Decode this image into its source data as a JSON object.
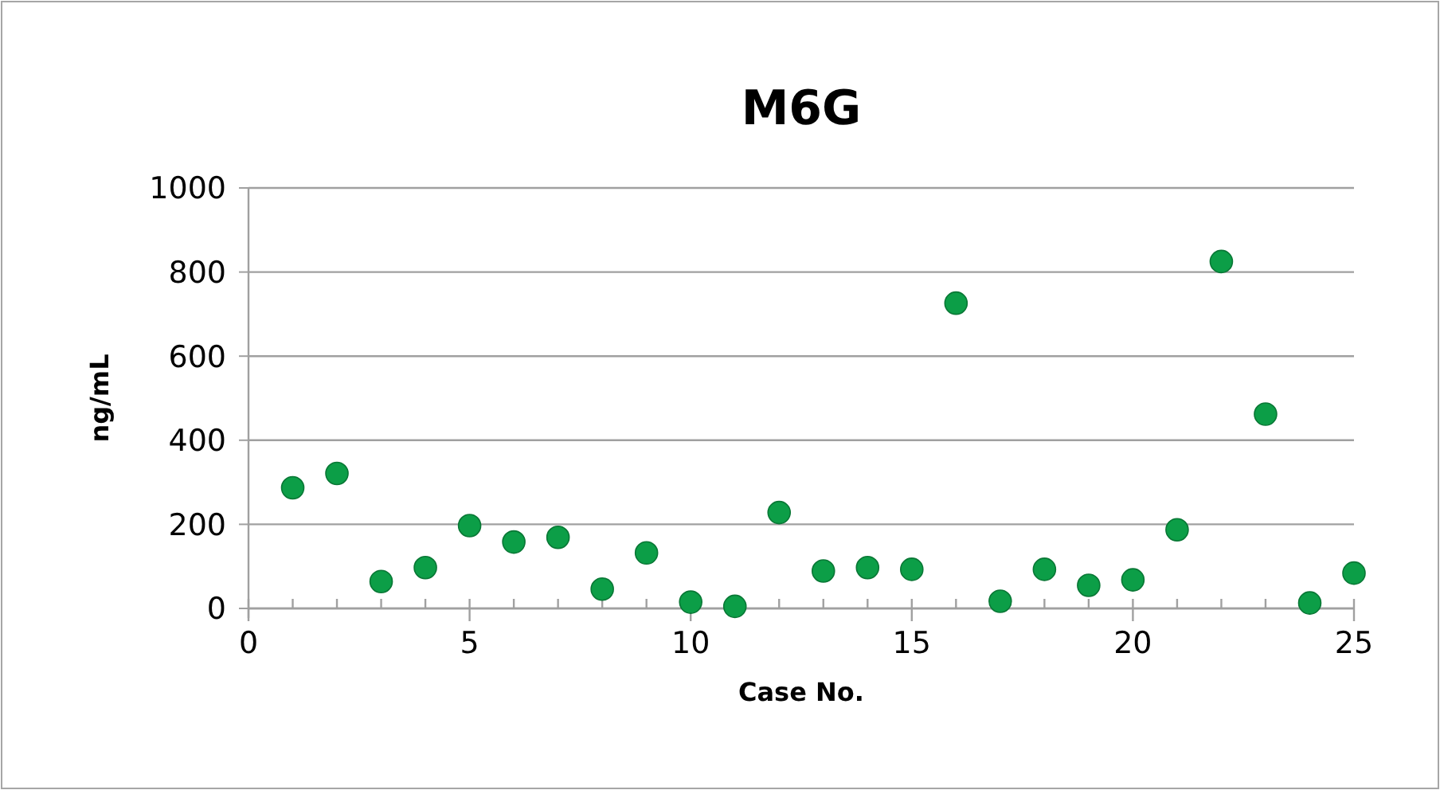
{
  "chart_data": {
    "type": "scatter",
    "title": "M6G",
    "xlabel": "Case No.",
    "ylabel": "ng/mL",
    "x": [
      1,
      2,
      3,
      4,
      5,
      6,
      7,
      8,
      9,
      10,
      11,
      12,
      13,
      14,
      15,
      16,
      17,
      18,
      19,
      20,
      21,
      22,
      23,
      24,
      25
    ],
    "series": [
      {
        "color": "#0c9e47",
        "values": [
          287,
          321,
          64,
          97,
          197,
          158,
          169,
          46,
          132,
          15,
          5,
          228,
          89,
          97,
          93,
          726,
          17,
          93,
          55,
          68,
          187,
          825,
          462,
          13,
          84
        ]
      }
    ],
    "xlim": [
      0,
      25
    ],
    "xticks": [
      0,
      {
        "value": 1,
        "label": null
      },
      {
        "value": 2,
        "label": null
      },
      {
        "value": 3,
        "label": null
      },
      {
        "value": 4,
        "label": null
      },
      5,
      {
        "value": 6,
        "label": null
      },
      {
        "value": 7,
        "label": null
      },
      {
        "value": 8,
        "label": null
      },
      {
        "value": 9,
        "label": null
      },
      10,
      {
        "value": 11,
        "label": null
      },
      {
        "value": 12,
        "label": null
      },
      {
        "value": 13,
        "label": null
      },
      {
        "value": 14,
        "label": null
      },
      15,
      {
        "value": 16,
        "label": null
      },
      {
        "value": 17,
        "label": null
      },
      {
        "value": 18,
        "label": null
      },
      {
        "value": 19,
        "label": null
      },
      20,
      {
        "value": 21,
        "label": null
      },
      {
        "value": 22,
        "label": null
      },
      {
        "value": 23,
        "label": null
      },
      {
        "value": 24,
        "label": null
      },
      25
    ],
    "ylim": [
      0,
      1000
    ],
    "yticks": [
      0,
      200,
      400,
      600,
      800,
      1000
    ],
    "grid": "y",
    "marker": "circle"
  }
}
